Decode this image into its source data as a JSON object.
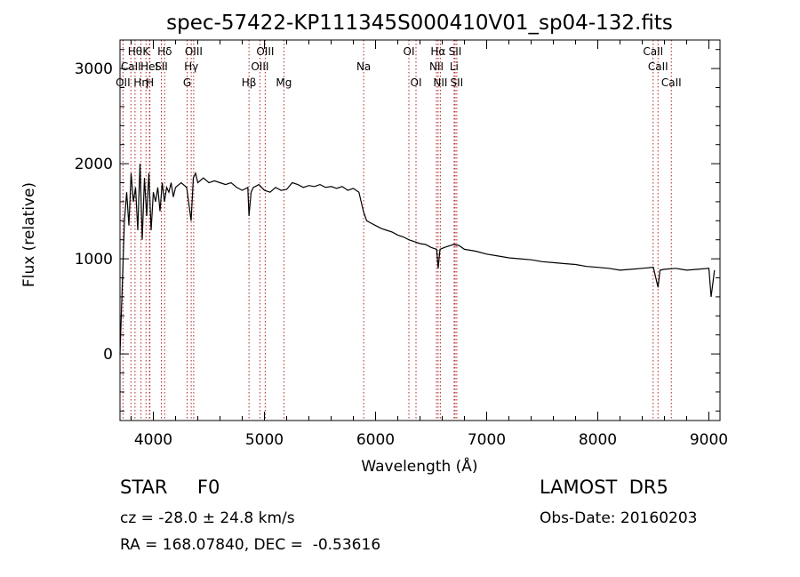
{
  "chart_data": {
    "type": "line",
    "title": "spec-57422-KP111345S000410V01_sp04-132.fits",
    "xlabel": "Wavelength (Å)",
    "ylabel": "Flux (relative)",
    "xlim": [
      3700,
      9100
    ],
    "ylim": [
      -700,
      3300
    ],
    "xticks": [
      4000,
      5000,
      6000,
      7000,
      8000,
      9000
    ],
    "yticks": [
      0,
      1000,
      2000,
      3000
    ],
    "grid": false,
    "legend": "none",
    "series": [
      {
        "x": [
          3700,
          3720,
          3740,
          3760,
          3780,
          3800,
          3820,
          3840,
          3860,
          3880,
          3900,
          3920,
          3940,
          3960,
          3980,
          4000,
          4020,
          4040,
          4060,
          4080,
          4100,
          4120,
          4140,
          4160,
          4180,
          4200,
          4250,
          4300,
          4340,
          4360,
          4380,
          4400,
          4450,
          4500,
          4550,
          4600,
          4650,
          4700,
          4750,
          4800,
          4850,
          4861,
          4880,
          4900,
          4950,
          5000,
          5050,
          5100,
          5150,
          5200,
          5250,
          5300,
          5350,
          5400,
          5450,
          5500,
          5550,
          5600,
          5650,
          5700,
          5750,
          5800,
          5850,
          5890,
          5920,
          5950,
          6000,
          6050,
          6100,
          6150,
          6200,
          6250,
          6300,
          6350,
          6400,
          6450,
          6500,
          6550,
          6563,
          6580,
          6620,
          6700,
          6750,
          6800,
          6900,
          7000,
          7100,
          7200,
          7300,
          7400,
          7500,
          7600,
          7700,
          7800,
          7900,
          8000,
          8100,
          8200,
          8300,
          8400,
          8500,
          8542,
          8560,
          8600,
          8700,
          8800,
          8900,
          9000,
          9020,
          9050
        ],
        "y": [
          0,
          700,
          1400,
          1700,
          1350,
          1900,
          1600,
          1750,
          1300,
          2000,
          1200,
          1850,
          1450,
          1900,
          1300,
          1700,
          1600,
          1750,
          1500,
          1800,
          1600,
          1750,
          1700,
          1800,
          1650,
          1750,
          1800,
          1750,
          1400,
          1850,
          1900,
          1800,
          1850,
          1800,
          1820,
          1800,
          1780,
          1800,
          1750,
          1720,
          1750,
          1450,
          1700,
          1750,
          1780,
          1720,
          1700,
          1750,
          1720,
          1730,
          1800,
          1780,
          1750,
          1770,
          1760,
          1780,
          1750,
          1760,
          1740,
          1760,
          1720,
          1740,
          1700,
          1500,
          1400,
          1380,
          1350,
          1320,
          1300,
          1280,
          1250,
          1230,
          1200,
          1180,
          1160,
          1150,
          1120,
          1100,
          900,
          1100,
          1120,
          1150,
          1140,
          1100,
          1080,
          1050,
          1030,
          1010,
          1000,
          990,
          970,
          960,
          950,
          940,
          920,
          910,
          900,
          880,
          890,
          900,
          910,
          700,
          880,
          890,
          900,
          880,
          890,
          900,
          600,
          880
        ]
      }
    ],
    "lines": [
      {
        "x": 3727,
        "row": 3,
        "label": "OII"
      },
      {
        "x": 3798,
        "row": 2,
        "label": "CaII"
      },
      {
        "x": 3835,
        "row": 1,
        "label": "Hθ"
      },
      {
        "x": 3889,
        "row": 3,
        "label": "Hη"
      },
      {
        "x": 3934,
        "row": 1,
        "label": "K"
      },
      {
        "x": 3965,
        "row": 2,
        "label": "HeI"
      },
      {
        "x": 3969,
        "row": 3,
        "label": "H"
      },
      {
        "x": 4072,
        "row": 2,
        "label": "SII"
      },
      {
        "x": 4102,
        "row": 1,
        "label": "Hδ"
      },
      {
        "x": 4304,
        "row": 3,
        "label": "G"
      },
      {
        "x": 4341,
        "row": 2,
        "label": "Hγ"
      },
      {
        "x": 4363,
        "row": 1,
        "label": "OIII"
      },
      {
        "x": 4861,
        "row": 3,
        "label": "Hβ"
      },
      {
        "x": 4959,
        "row": 2,
        "label": "OIII"
      },
      {
        "x": 5007,
        "row": 1,
        "label": "OIII"
      },
      {
        "x": 5175,
        "row": 3,
        "label": "Mg"
      },
      {
        "x": 5893,
        "row": 2,
        "label": "Na"
      },
      {
        "x": 6300,
        "row": 1,
        "label": "OI"
      },
      {
        "x": 6364,
        "row": 3,
        "label": "OI"
      },
      {
        "x": 6548,
        "row": 2,
        "label": "NII"
      },
      {
        "x": 6563,
        "row": 1,
        "label": "Hα"
      },
      {
        "x": 6583,
        "row": 3,
        "label": "NII"
      },
      {
        "x": 6707,
        "row": 2,
        "label": "Li"
      },
      {
        "x": 6716,
        "row": 1,
        "label": "SII"
      },
      {
        "x": 6731,
        "row": 3,
        "label": "SII"
      },
      {
        "x": 8498,
        "row": 1,
        "label": "CaII"
      },
      {
        "x": 8542,
        "row": 2,
        "label": "CaII"
      },
      {
        "x": 8662,
        "row": 3,
        "label": "CaII"
      }
    ],
    "colors": {
      "line": "#000000",
      "marker": "#b22222"
    }
  },
  "footer": {
    "object_class": "STAR     F0",
    "survey": "LAMOST  DR5",
    "redshift": "cz = -28.0 ± 24.8 km/s",
    "obs_date": "Obs-Date: 20160203",
    "coords": "RA = 168.07840, DEC =  -0.53616"
  }
}
